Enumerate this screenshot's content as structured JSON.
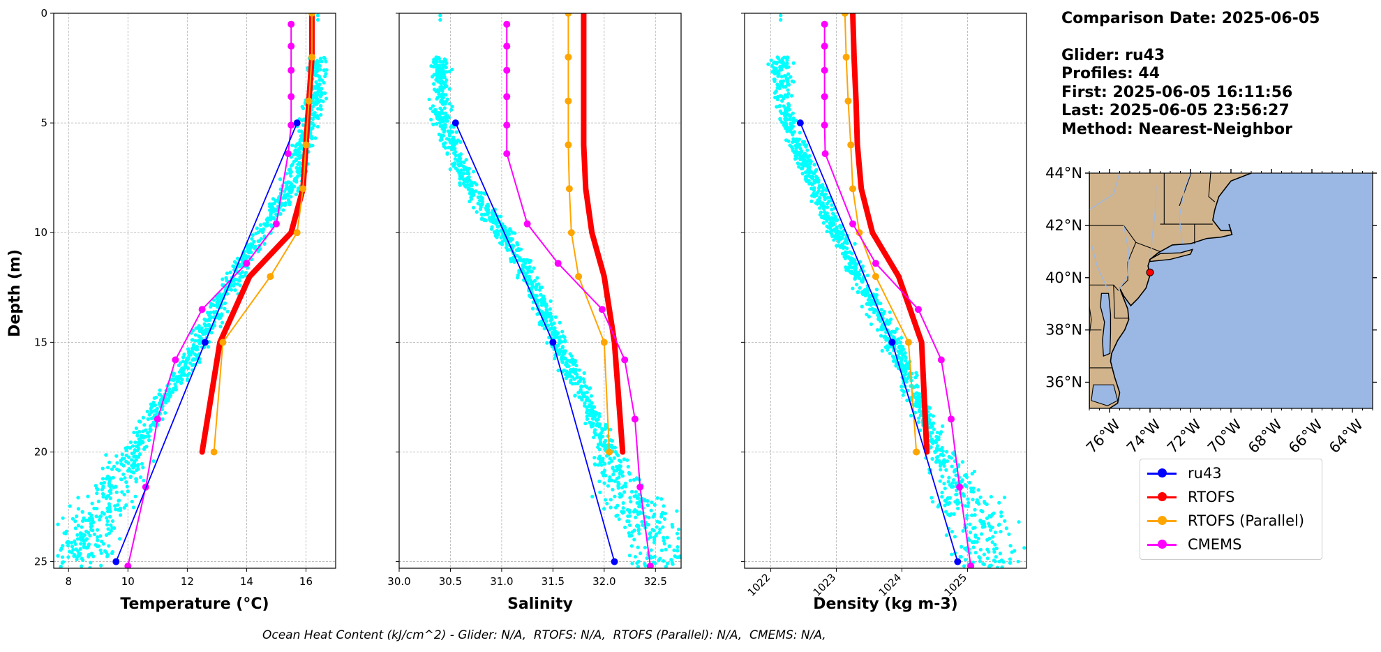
{
  "info": {
    "date_line": "Comparison Date: 2025-06-05",
    "glider_line": "Glider: ru43",
    "profiles_line": "Profiles: 44",
    "first_line": "First: 2025-06-05 16:11:56",
    "last_line": "Last: 2025-06-05 23:56:27",
    "method_line": "Method: Nearest-Neighbor"
  },
  "caption": "Ocean Heat Content (kJ/cm^2) - Glider: N/A,  RTOFS: N/A,  RTOFS (Parallel): N/A,  CMEMS: N/A,",
  "colors": {
    "ru43": "#0000ff",
    "rtofs": "#ff0000",
    "rtofs_parallel": "#ffa500",
    "cmems": "#ff00ff",
    "scatter": "#00ffff",
    "ocean": "#9ab8e3",
    "land": "#d2b48c"
  },
  "legend": [
    "ru43",
    "RTOFS",
    "RTOFS (Parallel)",
    "CMEMS"
  ],
  "chart_data": [
    {
      "type": "line",
      "xlabel": "Temperature (°C)",
      "ylabel": "Depth (m)",
      "xlim": [
        7.5,
        17
      ],
      "ylim": [
        25.3,
        0
      ],
      "xticks": [
        8,
        10,
        12,
        14,
        16
      ],
      "yticks": [
        0,
        5,
        10,
        15,
        20,
        25
      ],
      "grid": true,
      "series": [
        {
          "name": "ru43",
          "x": [
            15.7,
            12.6,
            9.6
          ],
          "y": [
            5,
            15,
            25
          ],
          "marker": true,
          "width": 1.8
        },
        {
          "name": "RTOFS",
          "x": [
            16.2,
            16.2,
            16.1,
            16.0,
            15.9,
            15.5,
            14.1,
            13.1,
            12.5
          ],
          "y": [
            0,
            2,
            4,
            6,
            8,
            10,
            12,
            15,
            20
          ],
          "marker": false,
          "width": 8
        },
        {
          "name": "RTOFS (Parallel)",
          "x": [
            16.2,
            16.2,
            16.1,
            16.0,
            15.9,
            15.7,
            14.8,
            13.2,
            12.9
          ],
          "y": [
            0,
            2,
            4,
            6,
            8,
            10,
            12,
            15,
            20
          ],
          "marker": true,
          "width": 2
        },
        {
          "name": "CMEMS",
          "x": [
            15.5,
            15.5,
            15.5,
            15.5,
            15.5,
            15.4,
            15.0,
            14.0,
            12.5,
            11.6,
            11.0,
            10.6,
            10.0
          ],
          "y": [
            0.5,
            1.5,
            2.6,
            3.8,
            5.1,
            6.4,
            9.6,
            11.4,
            13.5,
            15.8,
            18.5,
            21.6,
            25.2
          ],
          "marker": true,
          "width": 2
        }
      ],
      "scatter_profile": [
        [
          2,
          16.4
        ],
        [
          3,
          16.4
        ],
        [
          4,
          16.3
        ],
        [
          5,
          16.1
        ],
        [
          6,
          15.9
        ],
        [
          7,
          15.7
        ],
        [
          8,
          15.4
        ],
        [
          9,
          15.0
        ],
        [
          10,
          14.5
        ],
        [
          11,
          14.0
        ],
        [
          12,
          13.6
        ],
        [
          13,
          13.2
        ],
        [
          14,
          12.8
        ],
        [
          15,
          12.4
        ],
        [
          16,
          12.0
        ],
        [
          17,
          11.5
        ],
        [
          18,
          11.0
        ],
        [
          19,
          10.6
        ],
        [
          20,
          10.2
        ],
        [
          21,
          9.8
        ],
        [
          22,
          9.4
        ],
        [
          23,
          9.0
        ],
        [
          24,
          8.6
        ],
        [
          25,
          8.3
        ]
      ]
    },
    {
      "type": "line",
      "xlabel": "Salinity",
      "xlim": [
        30.0,
        32.75
      ],
      "ylim": [
        25.3,
        0
      ],
      "xticks": [
        30.0,
        30.5,
        31.0,
        31.5,
        32.0,
        32.5
      ],
      "yticks": [
        0,
        5,
        10,
        15,
        20,
        25
      ],
      "grid": true,
      "series": [
        {
          "name": "ru43",
          "x": [
            30.55,
            31.5,
            32.1
          ],
          "y": [
            5,
            15,
            25
          ],
          "marker": true,
          "width": 1.8
        },
        {
          "name": "RTOFS",
          "x": [
            31.8,
            31.8,
            31.8,
            31.8,
            31.82,
            31.88,
            32.0,
            32.1,
            32.18
          ],
          "y": [
            0,
            2,
            4,
            6,
            8,
            10,
            12,
            15,
            20
          ],
          "marker": false,
          "width": 8
        },
        {
          "name": "RTOFS (Parallel)",
          "x": [
            31.65,
            31.65,
            31.65,
            31.65,
            31.66,
            31.68,
            31.75,
            32.0,
            32.05
          ],
          "y": [
            0,
            2,
            4,
            6,
            8,
            10,
            12,
            15,
            20
          ],
          "marker": true,
          "width": 2
        },
        {
          "name": "CMEMS",
          "x": [
            31.05,
            31.05,
            31.05,
            31.05,
            31.05,
            31.05,
            31.25,
            31.55,
            31.98,
            32.2,
            32.3,
            32.35,
            32.45
          ],
          "y": [
            0.5,
            1.5,
            2.6,
            3.8,
            5.1,
            6.4,
            9.6,
            11.4,
            13.5,
            15.8,
            18.5,
            21.6,
            25.2
          ],
          "marker": true,
          "width": 2
        }
      ],
      "scatter_profile": [
        [
          2,
          30.4
        ],
        [
          3,
          30.4
        ],
        [
          4,
          30.4
        ],
        [
          5,
          30.43
        ],
        [
          6,
          30.5
        ],
        [
          7,
          30.6
        ],
        [
          8,
          30.7
        ],
        [
          9,
          30.85
        ],
        [
          10,
          31.0
        ],
        [
          11,
          31.15
        ],
        [
          12,
          31.25
        ],
        [
          13,
          31.35
        ],
        [
          14,
          31.45
        ],
        [
          15,
          31.55
        ],
        [
          16,
          31.65
        ],
        [
          17,
          31.75
        ],
        [
          18,
          31.85
        ],
        [
          19,
          31.95
        ],
        [
          20,
          32.05
        ],
        [
          21,
          32.15
        ],
        [
          22,
          32.25
        ],
        [
          23,
          32.4
        ],
        [
          24,
          32.5
        ],
        [
          25,
          32.55
        ]
      ]
    },
    {
      "type": "line",
      "xlabel": "Density (kg m-3)",
      "xlim": [
        1021.6,
        1025.9
      ],
      "ylim": [
        25.3,
        0
      ],
      "xticks": [
        1022,
        1023,
        1024,
        1025
      ],
      "yticks": [
        0,
        5,
        10,
        15,
        20,
        25
      ],
      "grid": true,
      "series": [
        {
          "name": "ru43",
          "x": [
            1022.45,
            1023.85,
            1024.85
          ],
          "y": [
            5,
            15,
            25
          ],
          "marker": true,
          "width": 1.8
        },
        {
          "name": "RTOFS",
          "x": [
            1023.25,
            1023.27,
            1023.3,
            1023.32,
            1023.38,
            1023.55,
            1023.95,
            1024.3,
            1024.38
          ],
          "y": [
            0,
            2,
            4,
            6,
            8,
            10,
            12,
            15,
            20
          ],
          "marker": false,
          "width": 8
        },
        {
          "name": "RTOFS (Parallel)",
          "x": [
            1023.13,
            1023.15,
            1023.18,
            1023.22,
            1023.25,
            1023.35,
            1023.6,
            1024.1,
            1024.22
          ],
          "y": [
            0,
            2,
            4,
            6,
            8,
            10,
            12,
            15,
            20
          ],
          "marker": true,
          "width": 2
        },
        {
          "name": "CMEMS",
          "x": [
            1022.82,
            1022.82,
            1022.82,
            1022.82,
            1022.82,
            1022.83,
            1023.25,
            1023.6,
            1024.25,
            1024.6,
            1024.75,
            1024.88,
            1025.05
          ],
          "y": [
            0.5,
            1.5,
            2.6,
            3.8,
            5.1,
            6.4,
            9.6,
            11.4,
            13.5,
            15.8,
            18.5,
            21.6,
            25.2
          ],
          "marker": true,
          "width": 2
        }
      ],
      "scatter_profile": [
        [
          2,
          1022.15
        ],
        [
          3,
          1022.15
        ],
        [
          4,
          1022.18
        ],
        [
          5,
          1022.25
        ],
        [
          6,
          1022.4
        ],
        [
          7,
          1022.55
        ],
        [
          8,
          1022.7
        ],
        [
          9,
          1022.85
        ],
        [
          10,
          1023.0
        ],
        [
          11,
          1023.2
        ],
        [
          12,
          1023.35
        ],
        [
          13,
          1023.5
        ],
        [
          14,
          1023.7
        ],
        [
          15,
          1023.85
        ],
        [
          16,
          1024.0
        ],
        [
          17,
          1024.15
        ],
        [
          18,
          1024.3
        ],
        [
          19,
          1024.45
        ],
        [
          20,
          1024.6
        ],
        [
          21,
          1024.75
        ],
        [
          22,
          1024.95
        ],
        [
          23,
          1025.1
        ],
        [
          24,
          1025.25
        ],
        [
          25,
          1025.3
        ]
      ]
    }
  ],
  "map": {
    "lat_range": [
      35,
      44
    ],
    "lon_range": [
      -77,
      -63
    ],
    "lat_ticks": [
      "36°N",
      "38°N",
      "40°N",
      "42°N",
      "44°N"
    ],
    "lon_ticks": [
      "76°W",
      "74°W",
      "72°W",
      "70°W",
      "68°W",
      "66°W",
      "64°W"
    ],
    "glider_position": [
      -74.0,
      40.2
    ]
  }
}
